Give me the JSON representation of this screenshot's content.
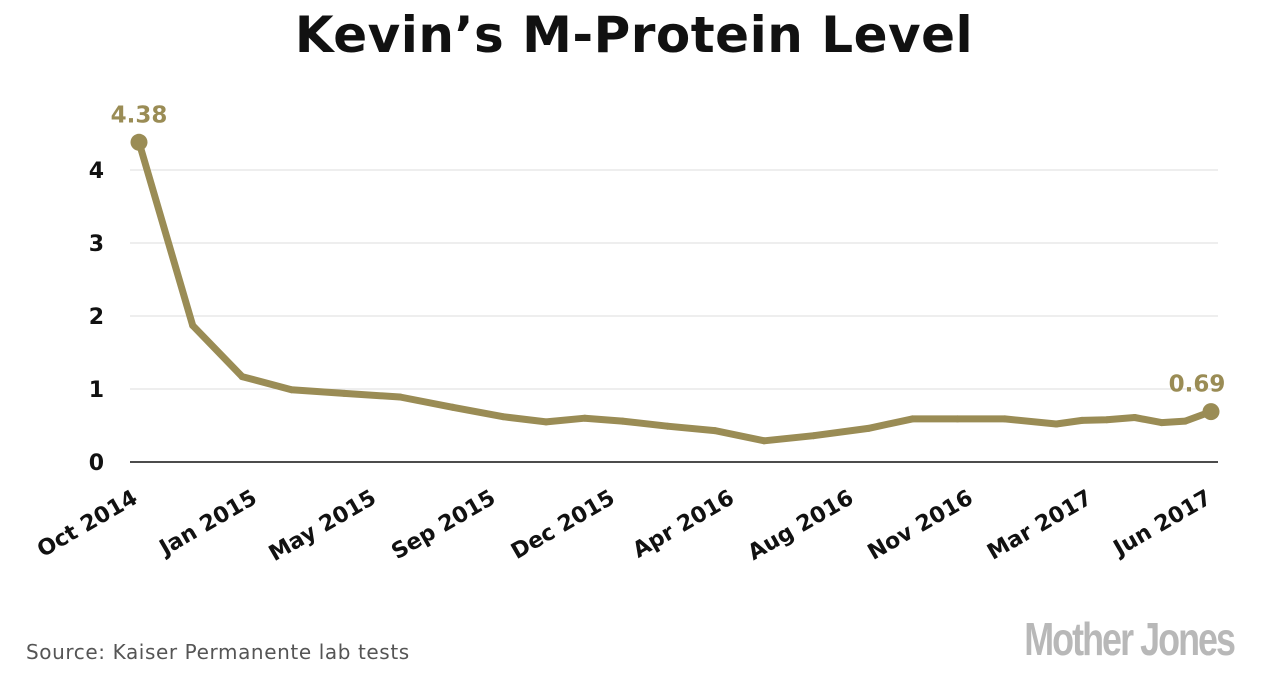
{
  "chart_data": {
    "type": "line",
    "title": "Kevin’s M-Protein Level",
    "xlabel": "",
    "ylabel": "",
    "ylim": [
      0,
      4.5
    ],
    "yticks": [
      0,
      1,
      2,
      3,
      4
    ],
    "xtick_labels": [
      "Oct 2014",
      "Jan 2015",
      "May 2015",
      "Sep 2015",
      "Dec 2015",
      "Apr 2016",
      "Aug 2016",
      "Nov 2016",
      "Mar 2017",
      "Jun 2017"
    ],
    "grid": true,
    "legend": "none",
    "series": [
      {
        "color": "#9a8c55",
        "x": [
          "2014-10-01",
          "2014-11-20",
          "2015-01-05",
          "2015-02-20",
          "2015-04-10",
          "2015-06-01",
          "2015-07-20",
          "2015-09-05",
          "2015-10-15",
          "2015-11-20",
          "2015-12-25",
          "2016-02-05",
          "2016-03-20",
          "2016-05-05",
          "2016-06-20",
          "2016-08-10",
          "2016-09-20",
          "2016-11-01",
          "2016-12-15",
          "2017-02-01",
          "2017-02-25",
          "2017-03-20",
          "2017-04-15",
          "2017-05-10",
          "2017-06-01",
          "2017-06-25"
        ],
        "values": [
          4.38,
          1.87,
          1.17,
          0.99,
          0.94,
          0.89,
          0.75,
          0.62,
          0.55,
          0.6,
          0.56,
          0.49,
          0.43,
          0.29,
          0.36,
          0.46,
          0.59,
          0.59,
          0.59,
          0.52,
          0.57,
          0.58,
          0.61,
          0.54,
          0.56,
          0.69
        ]
      }
    ],
    "annotations": [
      {
        "label": "4.38",
        "x": "2014-10-01",
        "y": 4.38
      },
      {
        "label": "0.69",
        "x": "2017-06-25",
        "y": 0.69
      }
    ]
  },
  "source_text": "Source: Kaiser Permanente lab tests",
  "logo_text": "Mother Jones"
}
